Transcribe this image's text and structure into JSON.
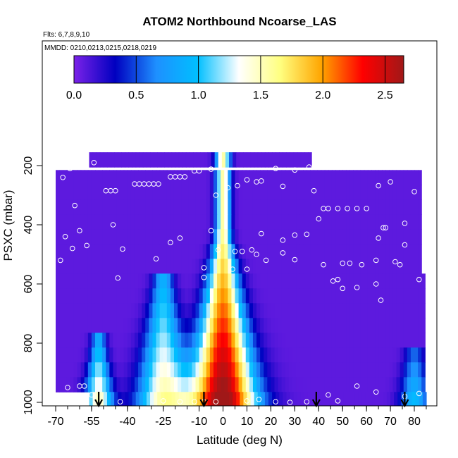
{
  "chart_data": {
    "type": "heatmap",
    "title": "ATOM2 Northbound Ncoarse_LAS",
    "subtitle_flights": "Flts: 6,7,8,9,10",
    "subtitle_dates": "MMDD: 0210,0213,0215,0218,0219",
    "xlabel": "Latitude (deg N)",
    "ylabel": "PSXC (mbar)",
    "xlim": [
      -70,
      85
    ],
    "ylim": [
      1000,
      100
    ],
    "x_ticks": [
      -70,
      -55,
      -40,
      -25,
      -10,
      0,
      10,
      20,
      30,
      40,
      50,
      60,
      70,
      80
    ],
    "x_tick_labels": [
      "-70",
      "-55",
      "-40",
      "-25",
      "-10",
      "0",
      "10",
      "20",
      "30",
      "40",
      "50",
      "60",
      "70",
      "80"
    ],
    "y_ticks": [
      200,
      400,
      600,
      800,
      1000
    ],
    "y_tick_labels": [
      "200",
      "400",
      "600",
      "800",
      "1000"
    ],
    "colorbar": {
      "range": [
        0,
        2.65
      ],
      "ticks": [
        0.0,
        0.5,
        1.0,
        1.5,
        2.0,
        2.5
      ],
      "tick_labels": [
        "0.0",
        "0.5",
        "1.0",
        "1.5",
        "2.0",
        "2.5"
      ],
      "colors": [
        "#7b22e8",
        "#0000c0",
        "#1e90ff",
        "#00bfff",
        "#ffffff",
        "#ffff80",
        "#ffa500",
        "#ff0000",
        "#a01818"
      ]
    },
    "arrow_latitudes": [
      -52,
      -8,
      39,
      76
    ],
    "pressure_levels": [
      180,
      240,
      290,
      340,
      390,
      440,
      490,
      540,
      590,
      640,
      690,
      740,
      790,
      840,
      890,
      940,
      990
    ],
    "profiles": [
      {
        "lat": 0,
        "pmin": 180,
        "amp": 2.7,
        "w_top": 3,
        "w_bot": 14,
        "p0": 420
      },
      {
        "lat": -25,
        "pmin": 560,
        "amp": 1.45,
        "w_top": 4,
        "w_bot": 11,
        "p0": 580
      },
      {
        "lat": -52,
        "pmin": 780,
        "amp": 1.45,
        "w_top": 3,
        "w_bot": 6,
        "p0": 800
      },
      {
        "lat": 80,
        "pmin": 820,
        "amp": 0.9,
        "w_top": 4,
        "w_bot": 6,
        "p0": 840
      }
    ],
    "sample_points": [
      {
        "lat": -67,
        "p": 240
      },
      {
        "lat": -64,
        "p": 210
      },
      {
        "lat": -59,
        "p": 195
      },
      {
        "lat": -54,
        "p": 190
      },
      {
        "lat": -62,
        "p": 335
      },
      {
        "lat": -66,
        "p": 440
      },
      {
        "lat": -60,
        "p": 420
      },
      {
        "lat": -57,
        "p": 470
      },
      {
        "lat": -63,
        "p": 480
      },
      {
        "lat": -68,
        "p": 520
      },
      {
        "lat": -46,
        "p": 400
      },
      {
        "lat": -49,
        "p": 285
      },
      {
        "lat": -47,
        "p": 285
      },
      {
        "lat": -45,
        "p": 285
      },
      {
        "lat": -37,
        "p": 262
      },
      {
        "lat": -35,
        "p": 262
      },
      {
        "lat": -33,
        "p": 262
      },
      {
        "lat": -31,
        "p": 262
      },
      {
        "lat": -29,
        "p": 262
      },
      {
        "lat": -27,
        "p": 262
      },
      {
        "lat": -22,
        "p": 238
      },
      {
        "lat": -20,
        "p": 238
      },
      {
        "lat": -18,
        "p": 238
      },
      {
        "lat": -16,
        "p": 238
      },
      {
        "lat": -12,
        "p": 218
      },
      {
        "lat": -10,
        "p": 218
      },
      {
        "lat": -5,
        "p": 212
      },
      {
        "lat": -3,
        "p": 300
      },
      {
        "lat": 2,
        "p": 275
      },
      {
        "lat": 6,
        "p": 268
      },
      {
        "lat": 10,
        "p": 248
      },
      {
        "lat": 14,
        "p": 255
      },
      {
        "lat": 16,
        "p": 252
      },
      {
        "lat": 22,
        "p": 210
      },
      {
        "lat": 25,
        "p": 270
      },
      {
        "lat": 30,
        "p": 215
      },
      {
        "lat": 36,
        "p": 205
      },
      {
        "lat": 38,
        "p": 285
      },
      {
        "lat": 42,
        "p": 345
      },
      {
        "lat": 44,
        "p": 345
      },
      {
        "lat": 48,
        "p": 345
      },
      {
        "lat": 52,
        "p": 345
      },
      {
        "lat": 56,
        "p": 345
      },
      {
        "lat": 60,
        "p": 345
      },
      {
        "lat": 65,
        "p": 268
      },
      {
        "lat": 70,
        "p": 255
      },
      {
        "lat": 80,
        "p": 288
      },
      {
        "lat": 40,
        "p": 380
      },
      {
        "lat": 68,
        "p": 410
      },
      {
        "lat": 67,
        "p": 410
      },
      {
        "lat": 76,
        "p": 395
      },
      {
        "lat": 65,
        "p": 445
      },
      {
        "lat": 76,
        "p": 468
      },
      {
        "lat": 35,
        "p": 432
      },
      {
        "lat": 30,
        "p": 435
      },
      {
        "lat": 25,
        "p": 452
      },
      {
        "lat": 16,
        "p": 430
      },
      {
        "lat": 12,
        "p": 485
      },
      {
        "lat": 8,
        "p": 490
      },
      {
        "lat": 5,
        "p": 490
      },
      {
        "lat": -2,
        "p": 485
      },
      {
        "lat": -5,
        "p": 420
      },
      {
        "lat": -18,
        "p": 445
      },
      {
        "lat": -22,
        "p": 460
      },
      {
        "lat": -42,
        "p": 482
      },
      {
        "lat": -28,
        "p": 515
      },
      {
        "lat": 14,
        "p": 500
      },
      {
        "lat": 18,
        "p": 520
      },
      {
        "lat": 25,
        "p": 495
      },
      {
        "lat": 30,
        "p": 518
      },
      {
        "lat": 42,
        "p": 535
      },
      {
        "lat": 50,
        "p": 530
      },
      {
        "lat": 53,
        "p": 530
      },
      {
        "lat": 58,
        "p": 535
      },
      {
        "lat": 64,
        "p": 520
      },
      {
        "lat": 72,
        "p": 525
      },
      {
        "lat": 74,
        "p": 535
      },
      {
        "lat": 10,
        "p": 550
      },
      {
        "lat": 4,
        "p": 550
      },
      {
        "lat": -8,
        "p": 545
      },
      {
        "lat": -44,
        "p": 580
      },
      {
        "lat": -8,
        "p": 578
      },
      {
        "lat": 46,
        "p": 590
      },
      {
        "lat": 48,
        "p": 585
      },
      {
        "lat": 50,
        "p": 615
      },
      {
        "lat": 56,
        "p": 612
      },
      {
        "lat": 64,
        "p": 600
      },
      {
        "lat": 66,
        "p": 655
      },
      {
        "lat": 82,
        "p": 585
      },
      {
        "lat": -65,
        "p": 950
      },
      {
        "lat": -60,
        "p": 945
      },
      {
        "lat": -58,
        "p": 945
      },
      {
        "lat": -55,
        "p": 975
      },
      {
        "lat": -43,
        "p": 998
      },
      {
        "lat": -25,
        "p": 995
      },
      {
        "lat": -18,
        "p": 998
      },
      {
        "lat": -12,
        "p": 998
      },
      {
        "lat": -8,
        "p": 998
      },
      {
        "lat": -3,
        "p": 998
      },
      {
        "lat": 10,
        "p": 995
      },
      {
        "lat": 15,
        "p": 990
      },
      {
        "lat": 22,
        "p": 998
      },
      {
        "lat": 28,
        "p": 1000
      },
      {
        "lat": 35,
        "p": 998
      },
      {
        "lat": 44,
        "p": 975
      },
      {
        "lat": 48,
        "p": 995
      },
      {
        "lat": 56,
        "p": 945
      },
      {
        "lat": 64,
        "p": 965
      },
      {
        "lat": 76,
        "p": 980
      },
      {
        "lat": 82,
        "p": 970
      }
    ]
  }
}
